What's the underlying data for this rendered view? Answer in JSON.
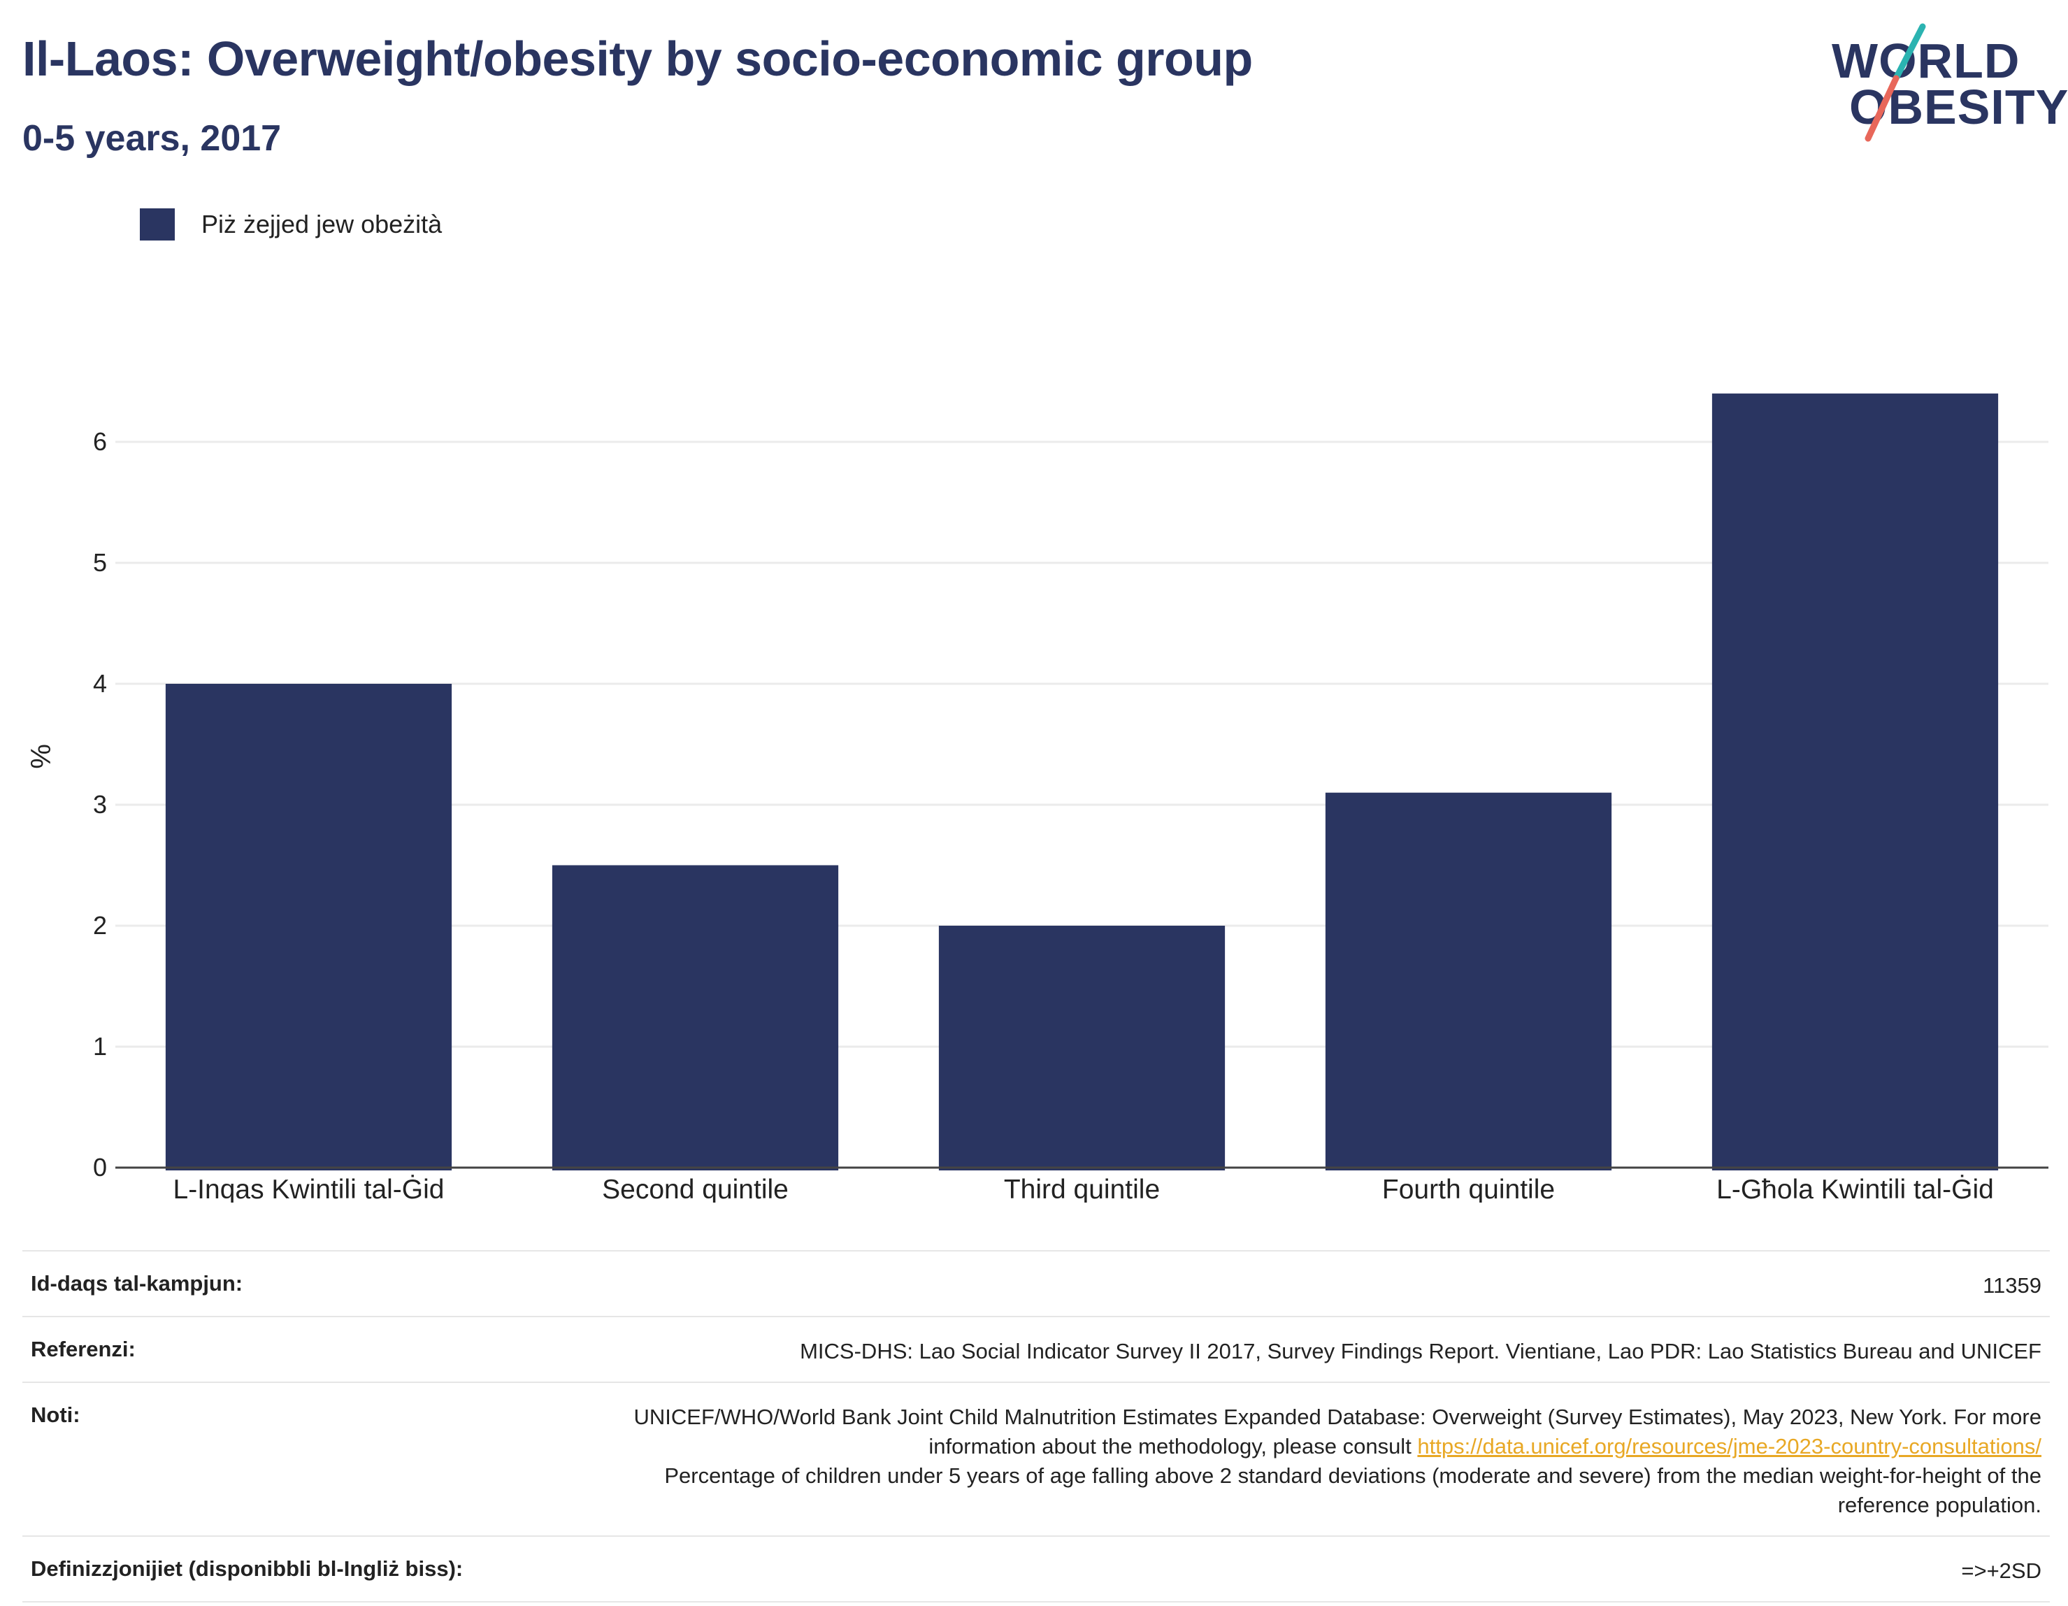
{
  "header": {
    "title": "Il-Laos: Overweight/obesity by socio-economic group",
    "subtitle": "0-5 years, 2017"
  },
  "logo": {
    "line1": "WORLD",
    "line2": "OBESITY",
    "colors": {
      "text": "#2a3561",
      "slash_top": "#2bb3b1",
      "slash_bottom": "#e8675a"
    }
  },
  "chart_data": {
    "type": "bar",
    "categories": [
      "L-Inqas Kwintili tal-Ġid",
      "Second quintile",
      "Third quintile",
      "Fourth quintile",
      "L-Għola Kwintili tal-Ġid"
    ],
    "series": [
      {
        "name": "Piż żejjed jew obeżità",
        "values": [
          4.0,
          2.5,
          2.0,
          3.1,
          6.4
        ],
        "color": "#2a3561"
      }
    ],
    "ylabel": "%",
    "ylim": [
      0,
      6.8
    ],
    "yticks": [
      0,
      1,
      2,
      3,
      4,
      5,
      6
    ],
    "grid": true,
    "legend_position": "top-left"
  },
  "info": {
    "sample_size_label": "Id-daqs tal-kampjun:",
    "sample_size_value": "11359",
    "references_label": "Referenzi:",
    "references_value": "MICS-DHS: Lao Social Indicator Survey II 2017, Survey Findings Report. Vientiane, Lao PDR: Lao Statistics Bureau and UNICEF",
    "notes_label": "Noti:",
    "notes_text_1": "UNICEF/WHO/World Bank Joint Child Malnutrition Estimates Expanded Database: Overweight (Survey Estimates), May 2023, New York. For more information about the methodology, please consult ",
    "notes_link": "https://data.unicef.org/resources/jme-2023-country-consultations/",
    "notes_text_2": "Percentage of children under 5 years of age falling above 2 standard deviations (moderate and severe) from the median weight-for-height of the reference population.",
    "definitions_label": "Definizzjonijiet (disponibbli bl-Ingliż biss):",
    "definitions_value": "=>+2SD"
  }
}
